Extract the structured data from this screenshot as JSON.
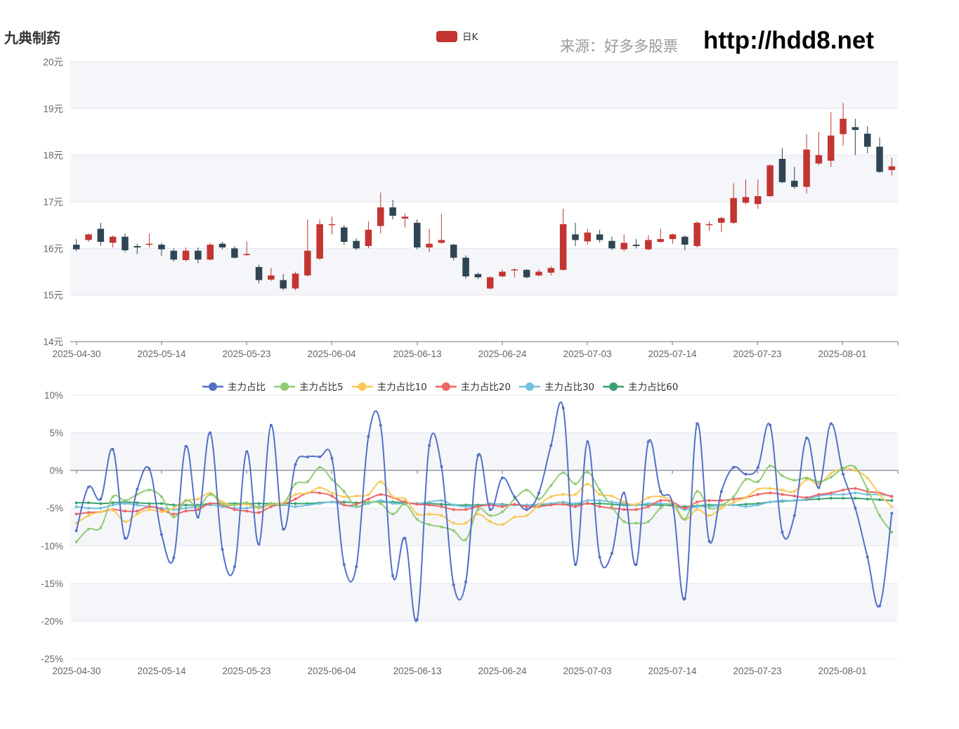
{
  "header": {
    "stock_name": "九典制药",
    "source_label": "来源：好多多股票",
    "site_url": "http://hdd8.net"
  },
  "chart_data": [
    {
      "type": "candlestick",
      "legend": [
        {
          "name": "日K",
          "color": "#c23531"
        }
      ],
      "ylim": [
        14,
        20
      ],
      "y_ticks": [
        "14元",
        "15元",
        "16元",
        "17元",
        "18元",
        "19元",
        "20元"
      ],
      "x_ticks": [
        "2025-04-30",
        "2025-05-14",
        "2025-05-23",
        "2025-06-04",
        "2025-06-13",
        "2025-06-24",
        "2025-07-03",
        "2025-07-14",
        "2025-07-23",
        "2025-08-01"
      ],
      "up_color": "#c23531",
      "down_color": "#2f4554",
      "candles": [
        [
          16.08,
          15.98,
          16.2,
          15.94
        ],
        [
          16.18,
          16.3,
          16.32,
          16.14
        ],
        [
          16.42,
          16.14,
          16.55,
          16.06
        ],
        [
          16.12,
          16.25,
          16.28,
          16.02
        ],
        [
          16.25,
          15.96,
          16.32,
          15.92
        ],
        [
          16.05,
          16.02,
          16.1,
          15.88
        ],
        [
          16.08,
          16.1,
          16.32,
          16.02
        ],
        [
          16.08,
          15.98,
          16.12,
          15.84
        ],
        [
          15.95,
          15.76,
          16.0,
          15.72
        ],
        [
          15.75,
          15.95,
          16.02,
          15.72
        ],
        [
          15.95,
          15.76,
          16.02,
          15.68
        ],
        [
          15.76,
          16.08,
          16.12,
          15.74
        ],
        [
          16.1,
          16.02,
          16.14,
          15.98
        ],
        [
          16.0,
          15.8,
          16.05,
          15.78
        ],
        [
          15.86,
          15.88,
          16.15,
          15.84
        ],
        [
          15.6,
          15.32,
          15.65,
          15.25
        ],
        [
          15.33,
          15.42,
          15.58,
          15.3
        ],
        [
          15.32,
          15.14,
          15.45,
          15.1
        ],
        [
          15.14,
          15.46,
          15.5,
          15.1
        ],
        [
          15.42,
          15.95,
          16.62,
          15.4
        ],
        [
          15.78,
          16.52,
          16.62,
          15.75
        ],
        [
          16.52,
          16.52,
          16.68,
          16.3
        ],
        [
          16.45,
          16.14,
          16.5,
          16.08
        ],
        [
          16.16,
          16.0,
          16.22,
          15.96
        ],
        [
          16.05,
          16.4,
          16.58,
          16.0
        ],
        [
          16.48,
          16.88,
          17.2,
          16.32
        ],
        [
          16.88,
          16.7,
          17.04,
          16.62
        ],
        [
          16.64,
          16.68,
          16.75,
          16.45
        ],
        [
          16.55,
          16.02,
          16.62,
          15.98
        ],
        [
          16.02,
          16.1,
          16.42,
          15.92
        ],
        [
          16.12,
          16.18,
          16.74,
          16.1
        ],
        [
          16.08,
          15.8,
          16.1,
          15.74
        ],
        [
          15.8,
          15.4,
          15.85,
          15.35
        ],
        [
          15.45,
          15.38,
          15.48,
          15.34
        ],
        [
          15.14,
          15.38,
          15.4,
          15.12
        ],
        [
          15.4,
          15.5,
          15.55,
          15.38
        ],
        [
          15.55,
          15.55,
          15.57,
          15.38
        ],
        [
          15.54,
          15.38,
          15.56,
          15.36
        ],
        [
          15.42,
          15.5,
          15.55,
          15.4
        ],
        [
          15.48,
          15.58,
          15.62,
          15.42
        ],
        [
          15.54,
          16.52,
          16.85,
          15.52
        ],
        [
          16.3,
          16.18,
          16.55,
          16.05
        ],
        [
          16.15,
          16.34,
          16.42,
          16.08
        ],
        [
          16.3,
          16.18,
          16.4,
          16.12
        ],
        [
          16.16,
          16.0,
          16.25,
          15.96
        ],
        [
          15.98,
          16.12,
          16.3,
          15.94
        ],
        [
          16.08,
          16.05,
          16.2,
          16.0
        ],
        [
          15.98,
          16.18,
          16.28,
          15.96
        ],
        [
          16.14,
          16.2,
          16.42,
          16.12
        ],
        [
          16.2,
          16.3,
          16.32,
          16.1
        ],
        [
          16.25,
          16.08,
          16.28,
          15.96
        ],
        [
          16.05,
          16.55,
          16.58,
          16.02
        ],
        [
          16.52,
          16.52,
          16.58,
          16.38
        ],
        [
          16.55,
          16.65,
          16.68,
          16.35
        ],
        [
          16.55,
          17.08,
          17.4,
          16.52
        ],
        [
          16.98,
          17.1,
          17.48,
          16.94
        ],
        [
          16.95,
          17.12,
          17.48,
          16.85
        ],
        [
          17.12,
          17.78,
          17.8,
          17.1
        ],
        [
          17.92,
          17.42,
          18.15,
          17.4
        ],
        [
          17.45,
          17.32,
          17.75,
          17.28
        ],
        [
          17.32,
          18.12,
          18.45,
          17.18
        ],
        [
          17.82,
          18.0,
          18.5,
          17.78
        ],
        [
          17.88,
          18.42,
          18.92,
          17.75
        ],
        [
          18.45,
          18.78,
          19.12,
          18.2
        ],
        [
          18.6,
          18.54,
          18.78,
          18.0
        ],
        [
          18.46,
          18.18,
          18.62,
          18.04
        ],
        [
          18.18,
          17.64,
          18.38,
          17.62
        ],
        [
          17.68,
          17.76,
          17.95,
          17.56
        ]
      ]
    },
    {
      "type": "line",
      "ylim": [
        -25,
        10
      ],
      "y_ticks": [
        "-25%",
        "-20%",
        "-15%",
        "-10%",
        "-5%",
        "0%",
        "5%",
        "10%"
      ],
      "x_ticks": [
        "2025-04-30",
        "2025-05-14",
        "2025-05-23",
        "2025-06-04",
        "2025-06-13",
        "2025-06-24",
        "2025-07-03",
        "2025-07-14",
        "2025-07-23",
        "2025-08-01"
      ],
      "series": [
        {
          "name": "主力占比",
          "color": "#5470c6",
          "values": [
            -8.0,
            -2.2,
            -3.8,
            2.8,
            -9.0,
            -2.5,
            0.2,
            -8.5,
            -11.6,
            3.2,
            -6.2,
            5.0,
            -10.5,
            -12.8,
            2.5,
            -9.8,
            6.0,
            -7.8,
            0.8,
            1.8,
            1.8,
            1.6,
            -12.5,
            -12.8,
            4.5,
            6.0,
            -14.0,
            -9.0,
            -19.8,
            3.3,
            0.5,
            -15.2,
            -14.8,
            2.0,
            -5.2,
            -1.0,
            -3.5,
            -5.2,
            -3.0,
            3.3,
            8.3,
            -12.5,
            3.8,
            -11.5,
            -11.0,
            -3.0,
            -12.5,
            3.8,
            -2.8,
            -4.5,
            -17.0,
            6.2,
            -9.4,
            -2.8,
            0.4,
            -0.5,
            0.4,
            6.0,
            -8.2,
            -6.0,
            4.3,
            -2.3,
            6.2,
            -0.5,
            -5.0,
            -11.5,
            -18.0,
            -5.7
          ]
        },
        {
          "name": "主力占比5",
          "color": "#91cc75",
          "values": [
            -9.5,
            -7.8,
            -7.6,
            -3.5,
            -4.0,
            -3.2,
            -2.6,
            -3.5,
            -6.2,
            -4.0,
            -4.8,
            -3.2,
            -4.5,
            -4.6,
            -4.3,
            -4.9,
            -4.4,
            -4.5,
            -1.8,
            -1.5,
            0.4,
            -1.2,
            -2.8,
            -4.8,
            -4.2,
            -4.4,
            -5.8,
            -4.5,
            -6.5,
            -7.2,
            -7.5,
            -8.0,
            -9.2,
            -5.2,
            -6.0,
            -5.5,
            -3.8,
            -2.6,
            -3.8,
            -2.0,
            -0.3,
            -1.8,
            -0.2,
            -2.6,
            -4.8,
            -6.8,
            -7.0,
            -6.8,
            -5.0,
            -4.5,
            -6.5,
            -2.8,
            -5.0,
            -4.6,
            -3.5,
            -1.2,
            -1.5,
            0.6,
            -0.7,
            -1.3,
            -1.0,
            -1.5,
            -0.9,
            0.3,
            0.4,
            -2.5,
            -6.0,
            -8.2
          ]
        },
        {
          "name": "主力占比10",
          "color": "#fac858",
          "values": [
            -7.0,
            -6.0,
            -5.5,
            -5.3,
            -6.8,
            -5.8,
            -5.2,
            -5.5,
            -5.0,
            -4.0,
            -3.8,
            -3.0,
            -4.2,
            -4.6,
            -4.5,
            -5.0,
            -4.5,
            -4.3,
            -3.2,
            -3.0,
            -2.3,
            -3.0,
            -3.5,
            -3.4,
            -3.2,
            -1.5,
            -3.5,
            -3.8,
            -5.8,
            -5.8,
            -6.0,
            -7.0,
            -7.0,
            -5.8,
            -6.8,
            -7.2,
            -6.2,
            -6.0,
            -4.6,
            -3.5,
            -3.2,
            -3.2,
            -1.8,
            -3.2,
            -3.4,
            -4.2,
            -4.5,
            -3.6,
            -3.5,
            -4.2,
            -6.5,
            -5.2,
            -6.0,
            -5.0,
            -4.2,
            -3.6,
            -2.5,
            -2.4,
            -2.6,
            -2.8,
            -1.2,
            -1.8,
            -0.4,
            0.2,
            0.0,
            -1.0,
            -3.2,
            -4.8
          ]
        },
        {
          "name": "主力占比20",
          "color": "#ee6666",
          "values": [
            -5.8,
            -5.6,
            -5.5,
            -5.2,
            -5.4,
            -5.4,
            -4.8,
            -5.2,
            -5.8,
            -5.4,
            -5.2,
            -4.4,
            -4.6,
            -5.2,
            -5.4,
            -5.6,
            -4.8,
            -4.5,
            -3.8,
            -3.0,
            -3.0,
            -3.4,
            -4.6,
            -4.5,
            -3.8,
            -3.2,
            -3.6,
            -4.2,
            -4.5,
            -4.6,
            -4.8,
            -5.2,
            -5.2,
            -4.8,
            -4.6,
            -4.8,
            -4.5,
            -4.8,
            -4.8,
            -4.6,
            -4.5,
            -4.8,
            -4.4,
            -4.8,
            -5.0,
            -5.2,
            -5.2,
            -4.8,
            -4.0,
            -4.2,
            -5.0,
            -4.2,
            -4.0,
            -4.0,
            -3.8,
            -3.6,
            -3.2,
            -3.0,
            -3.2,
            -3.4,
            -3.6,
            -3.2,
            -3.0,
            -2.6,
            -2.4,
            -2.8,
            -3.0,
            -3.5
          ]
        },
        {
          "name": "主力占比30",
          "color": "#73c0de",
          "values": [
            -4.8,
            -5.0,
            -5.0,
            -4.6,
            -4.4,
            -4.6,
            -4.8,
            -5.0,
            -5.2,
            -5.0,
            -4.8,
            -4.6,
            -4.8,
            -5.0,
            -5.0,
            -4.8,
            -4.6,
            -4.6,
            -4.8,
            -4.6,
            -4.4,
            -4.2,
            -4.6,
            -4.8,
            -4.4,
            -4.0,
            -4.4,
            -4.4,
            -4.4,
            -4.2,
            -4.0,
            -4.6,
            -4.8,
            -4.8,
            -4.4,
            -4.6,
            -4.6,
            -4.6,
            -4.5,
            -4.4,
            -4.2,
            -4.4,
            -4.0,
            -4.0,
            -4.2,
            -4.4,
            -4.6,
            -4.4,
            -4.4,
            -4.6,
            -5.2,
            -4.8,
            -4.8,
            -4.6,
            -4.6,
            -4.8,
            -4.6,
            -4.2,
            -4.0,
            -4.0,
            -3.8,
            -3.4,
            -3.2,
            -3.2,
            -3.0,
            -3.2,
            -3.2,
            -3.4
          ]
        },
        {
          "name": "主力占比60",
          "color": "#3ba272",
          "values": [
            -4.3,
            -4.3,
            -4.4,
            -4.3,
            -4.2,
            -4.3,
            -4.4,
            -4.4,
            -4.6,
            -4.6,
            -4.6,
            -4.4,
            -4.4,
            -4.4,
            -4.4,
            -4.4,
            -4.4,
            -4.4,
            -4.4,
            -4.4,
            -4.3,
            -4.2,
            -4.2,
            -4.3,
            -4.2,
            -4.2,
            -4.2,
            -4.3,
            -4.4,
            -4.4,
            -4.5,
            -4.6,
            -4.6,
            -4.6,
            -4.5,
            -4.5,
            -4.6,
            -4.6,
            -4.6,
            -4.5,
            -4.5,
            -4.5,
            -4.4,
            -4.4,
            -4.5,
            -4.6,
            -4.6,
            -4.6,
            -4.6,
            -4.7,
            -4.8,
            -4.7,
            -4.6,
            -4.6,
            -4.6,
            -4.5,
            -4.4,
            -4.2,
            -4.1,
            -4.0,
            -3.9,
            -3.8,
            -3.7,
            -3.7,
            -3.7,
            -3.8,
            -3.9,
            -4.0
          ]
        }
      ]
    }
  ]
}
